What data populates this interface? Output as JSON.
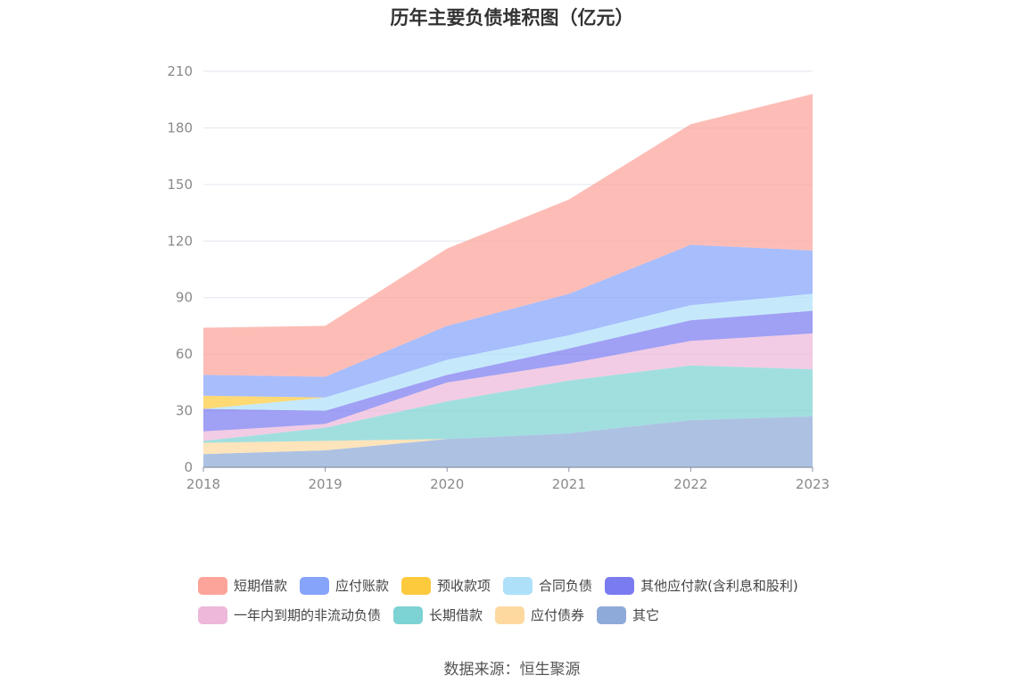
{
  "title": "历年主要负债堆积图（亿元）",
  "source": "数据来源：恒生聚源",
  "chart_data": {
    "type": "area",
    "stacked": true,
    "title": "历年主要负债堆积图（亿元）",
    "x": [
      "2018",
      "2019",
      "2020",
      "2021",
      "2022",
      "2023"
    ],
    "ylim": [
      0,
      210
    ],
    "yticks": [
      0,
      30,
      60,
      90,
      120,
      150,
      180,
      210
    ],
    "grid": true,
    "legend_position": "bottom",
    "series": [
      {
        "name": "其它",
        "color": "#8eaad8",
        "values": [
          7,
          9,
          15,
          18,
          25,
          27
        ]
      },
      {
        "name": "应付债券",
        "color": "#fdd9a0",
        "values": [
          6,
          5,
          0,
          0,
          0,
          0
        ]
      },
      {
        "name": "长期借款",
        "color": "#7dd3d3",
        "values": [
          1,
          7,
          20,
          28,
          29,
          25
        ]
      },
      {
        "name": "一年内到期的非流动负债",
        "color": "#edb8da",
        "values": [
          5,
          2,
          10,
          9,
          13,
          19
        ]
      },
      {
        "name": "其他应付款(含利息和股利)",
        "color": "#7b7bf0",
        "values": [
          12,
          7,
          4,
          8,
          11,
          12
        ]
      },
      {
        "name": "合同负债",
        "color": "#aee0fa",
        "values": [
          0,
          7,
          8,
          7,
          8,
          9
        ]
      },
      {
        "name": "预收款项",
        "color": "#fdca3e",
        "values": [
          7,
          0,
          0,
          0,
          0,
          0
        ]
      },
      {
        "name": "应付账款",
        "color": "#87a4fb",
        "values": [
          11,
          11,
          18,
          22,
          32,
          23
        ]
      },
      {
        "name": "短期借款",
        "color": "#fca49a",
        "values": [
          25,
          27,
          41,
          50,
          64,
          83
        ]
      }
    ]
  },
  "legend": [
    [
      {
        "name": "短期借款",
        "color": "#fca49a"
      },
      {
        "name": "应付账款",
        "color": "#87a4fb"
      },
      {
        "name": "预收款项",
        "color": "#fdca3e"
      },
      {
        "name": "合同负债",
        "color": "#aee0fa"
      },
      {
        "name": "其他应付款(含利息和股利)",
        "color": "#7b7bf0"
      }
    ],
    [
      {
        "name": "一年内到期的非流动负债",
        "color": "#edb8da"
      },
      {
        "name": "长期借款",
        "color": "#7dd3d3"
      },
      {
        "name": "应付债券",
        "color": "#fdd9a0"
      },
      {
        "name": "其它",
        "color": "#8eaad8"
      }
    ]
  ]
}
